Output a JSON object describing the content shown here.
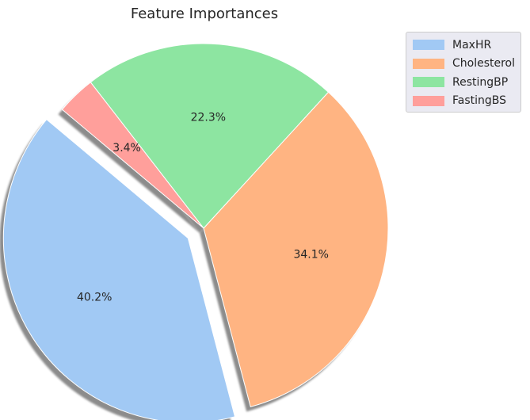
{
  "chart_data": {
    "type": "pie",
    "title": "Feature Importances",
    "labels": [
      "MaxHR",
      "Cholesterol",
      "RestingBP",
      "FastingBS"
    ],
    "values": [
      40.2,
      34.1,
      22.3,
      3.4
    ],
    "value_labels": [
      "40.2%",
      "34.1%",
      "22.3%",
      "3.4%"
    ],
    "colors": [
      "#a1c9f4",
      "#ffb482",
      "#8de5a1",
      "#ff9f9b"
    ],
    "explode": [
      0.1,
      0,
      0,
      0
    ],
    "shadow": true,
    "start_angle": 140,
    "direction": "counterclockwise",
    "legend_position": "top-right"
  }
}
